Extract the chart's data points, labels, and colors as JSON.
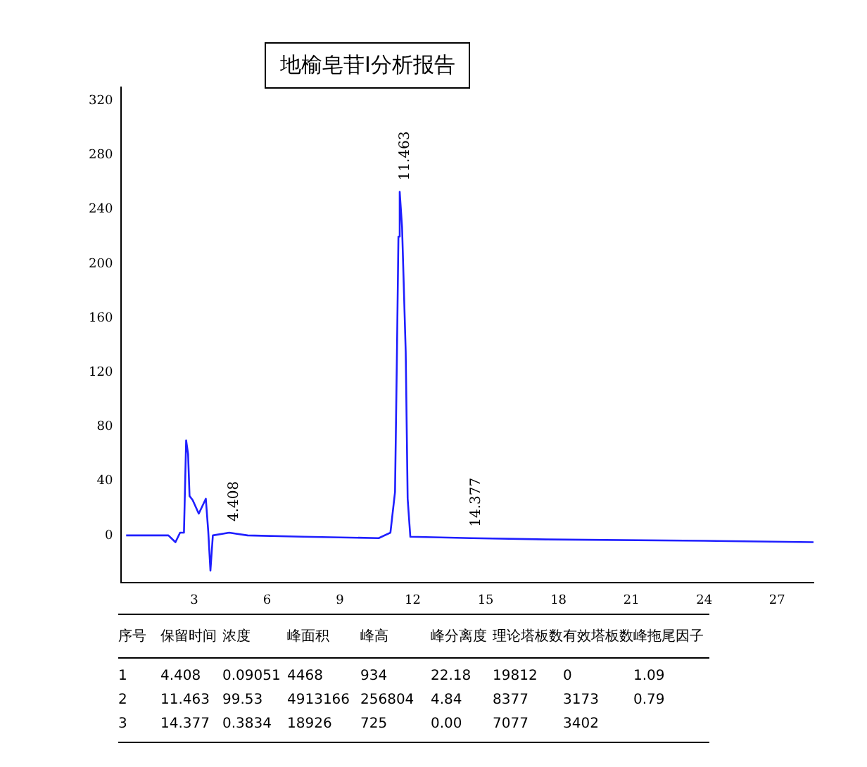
{
  "chart_data": {
    "type": "line",
    "title": "地榆皂苷Ⅰ分析报告",
    "x": [
      0.2,
      1.94,
      2.23,
      2.42,
      2.58,
      2.67,
      2.75,
      2.81,
      2.94,
      3.19,
      3.48,
      3.58,
      3.67,
      3.77,
      4.44,
      5.2,
      7.5,
      10.6,
      11.08,
      11.27,
      11.35,
      11.41,
      11.463,
      11.56,
      11.71,
      11.79,
      11.9,
      14.4,
      17.5,
      24,
      28.5
    ],
    "series": [
      {
        "color": "#1f1fff",
        "values": [
          0,
          0,
          -5,
          2,
          2,
          70,
          60,
          29,
          26,
          16,
          27,
          3,
          -26,
          0,
          2,
          0,
          -1,
          -2,
          2,
          32,
          135,
          220,
          253,
          227,
          135,
          27,
          -1,
          -2,
          -3,
          -4,
          -5
        ]
      }
    ],
    "xlim": [
      0,
      28.5
    ],
    "xticks": [
      3,
      6,
      9,
      12,
      15,
      18,
      21,
      24,
      27
    ],
    "ylim": [
      -35,
      330
    ],
    "yticks": [
      0,
      40,
      80,
      120,
      160,
      200,
      240,
      280,
      320
    ],
    "grid": false,
    "legend": false,
    "marker": "none",
    "line_style": "solid",
    "annotations": [
      {
        "text": "4.408",
        "x": 4.408,
        "y": 2
      },
      {
        "text": "11.463",
        "x": 11.463,
        "y": 253
      },
      {
        "text": "14.377",
        "x": 14.377,
        "y": -2
      },
      "序号\t保留时间\t浓度\t峰面积\t峰高\t峰分离度\t理论塔板数\t有效塔板数\t峰拖尾因子",
      "1\t4.408\t0.09051\t4468\t934\t22.18\t19812\t0\t1.09",
      "2\t11.463\t99.53\t4913166\t256804\t4.84\t8377\t3173\t0.79",
      "3\t14.377\t0.3834\t18926\t725\t0.00\t7077\t3402"
    ]
  }
}
